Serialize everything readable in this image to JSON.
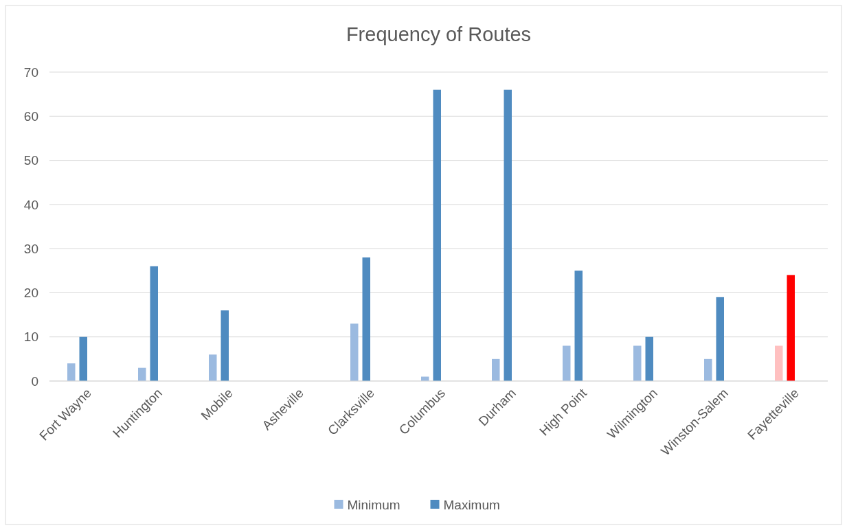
{
  "chart_data": {
    "type": "bar",
    "title": "Frequency of Routes",
    "categories": [
      "Fort Wayne",
      "Huntington",
      "Mobile",
      "Asheville",
      "Clarksville",
      "Columbus",
      "Durham",
      "High Point",
      "Wilmington",
      "Winston-Salem",
      "Fayetteville"
    ],
    "series": [
      {
        "name": "Minimum",
        "color": "#9bbae0",
        "colors": [
          "#9bbae0",
          "#9bbae0",
          "#9bbae0",
          null,
          "#9bbae0",
          "#9bbae0",
          "#9bbae0",
          "#9bbae0",
          "#9bbae0",
          "#9bbae0",
          "#ffc0c0"
        ],
        "values": [
          4,
          3,
          6,
          null,
          13,
          1,
          5,
          8,
          8,
          5,
          8
        ]
      },
      {
        "name": "Maximum",
        "color": "#4f8bc0",
        "colors": [
          "#4f8bc0",
          "#4f8bc0",
          "#4f8bc0",
          null,
          "#4f8bc0",
          "#4f8bc0",
          "#4f8bc0",
          "#4f8bc0",
          "#4f8bc0",
          "#4f8bc0",
          "#ff0000"
        ],
        "values": [
          10,
          26,
          16,
          null,
          28,
          66,
          66,
          25,
          10,
          19,
          24
        ]
      }
    ],
    "ylim": [
      0,
      70
    ],
    "yticks": [
      0,
      10,
      20,
      30,
      40,
      50,
      60,
      70
    ],
    "grid": "y",
    "legend": "bottom"
  }
}
